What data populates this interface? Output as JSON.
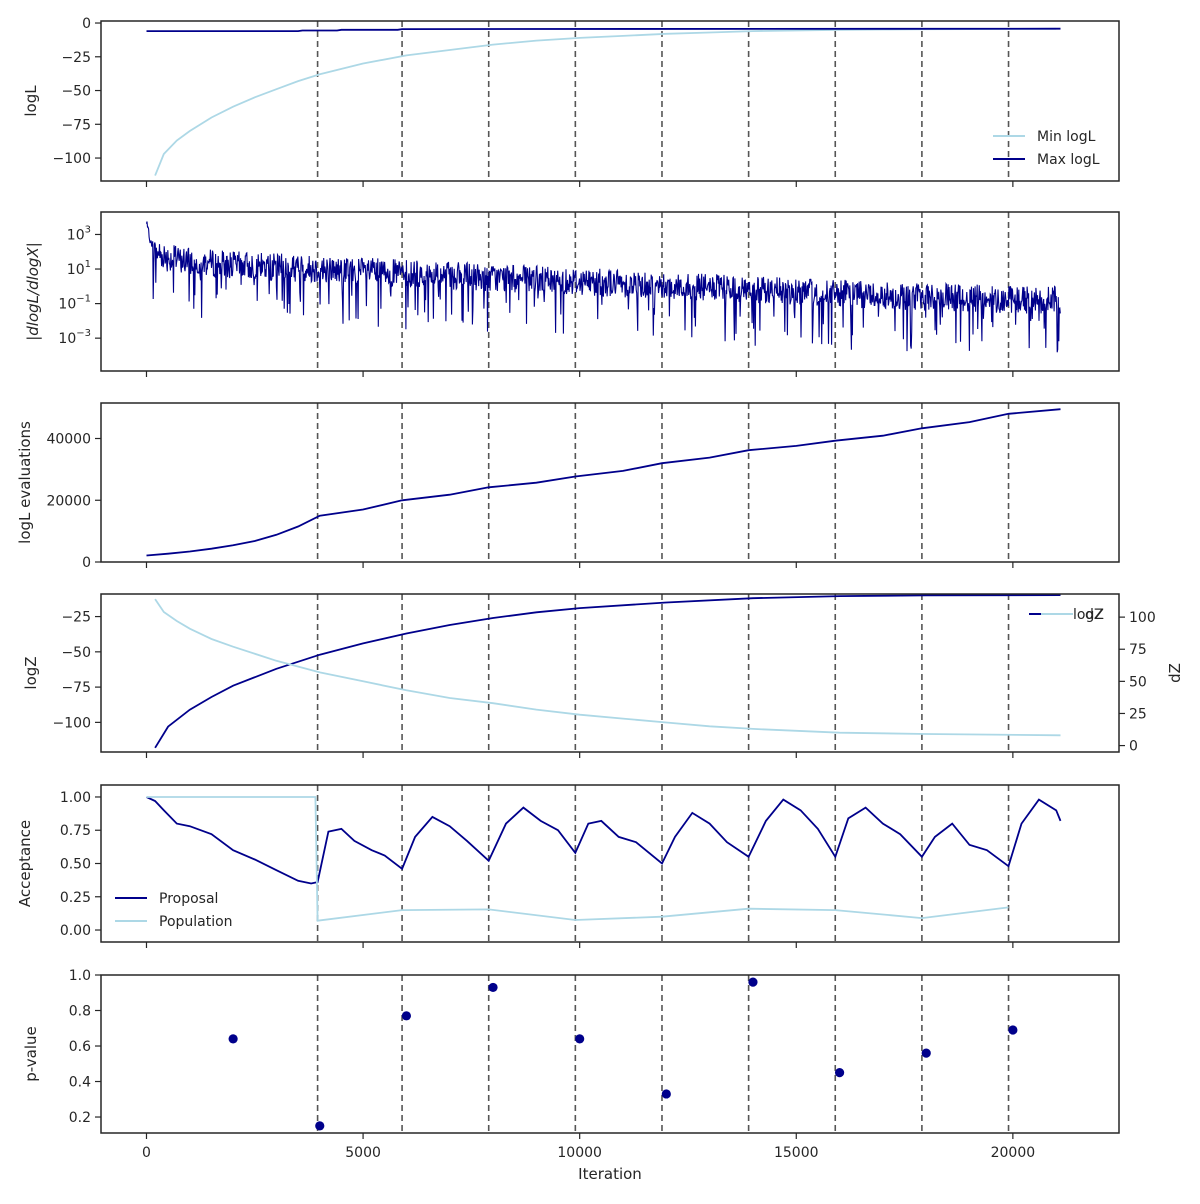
{
  "colors": {
    "navy": "#00008b",
    "light": "#add8e6",
    "frame": "#262626",
    "vline": "#555555"
  },
  "xaxis": {
    "label": "Iteration",
    "range": [
      -1050,
      22450
    ],
    "ticks": [
      0,
      5000,
      10000,
      15000,
      20000
    ]
  },
  "vlines": [
    3950,
    5900,
    7900,
    9900,
    11900,
    13900,
    15900,
    17900,
    19900
  ],
  "chart_data": [
    {
      "id": "logl",
      "type": "line",
      "ylabel": "logL",
      "ylim": [
        -117,
        1.5
      ],
      "yticks": [
        {
          "v": 0,
          "label": "0"
        },
        {
          "v": -25,
          "label": "−25"
        },
        {
          "v": -50,
          "label": "−50"
        },
        {
          "v": -75,
          "label": "−75"
        },
        {
          "v": -100,
          "label": "−100"
        }
      ],
      "legend": {
        "placement": "lower-right",
        "entries": [
          "Min logL",
          "Max logL"
        ]
      },
      "series": [
        {
          "name": "Min logL",
          "color": "light",
          "x": [
            200,
            400,
            700,
            1000,
            1500,
            2000,
            2500,
            3000,
            3500,
            4000,
            5000,
            6000,
            7000,
            8000,
            9000,
            10000,
            11000,
            12000,
            13000,
            14000,
            15000,
            16000,
            17000,
            18000,
            19000,
            20000,
            21000
          ],
          "y": [
            -113,
            -97,
            -87,
            -80,
            -70,
            -62,
            -55,
            -49,
            -43,
            -38,
            -30,
            -24,
            -20,
            -16,
            -13,
            -11,
            -9.5,
            -8,
            -7,
            -6,
            -5.5,
            -5,
            -4.8,
            -4.6,
            -4.5,
            -4.4,
            -4.3
          ]
        },
        {
          "name": "Max logL",
          "color": "navy",
          "x": [
            0,
            3500,
            3600,
            4400,
            4500,
            5800,
            5900,
            21100
          ],
          "y": [
            -6,
            -6,
            -5.5,
            -5.5,
            -5,
            -5,
            -4.5,
            -4.2
          ]
        }
      ]
    },
    {
      "id": "dlogl",
      "type": "line",
      "ylabel": "|dlogL/dlogX|",
      "yscale": "log",
      "ylim": [
        -4.9,
        4.3
      ],
      "yticks": [
        {
          "v": 3,
          "base": "10",
          "exp": "3"
        },
        {
          "v": 1,
          "base": "10",
          "exp": "1"
        },
        {
          "v": -1,
          "base": "10",
          "exp": "−1"
        },
        {
          "v": -3,
          "base": "10",
          "exp": "−3"
        }
      ],
      "series": [
        {
          "name": "",
          "color": "navy",
          "x": [
            0,
            100,
            500,
            1000,
            2000,
            4000,
            6000,
            8000,
            10000,
            12000,
            14000,
            16000,
            18000,
            20000,
            21100
          ],
          "y_log10_center": [
            3.5,
            2.3,
            1.8,
            1.6,
            1.4,
            1.15,
            0.9,
            0.65,
            0.45,
            0.2,
            -0.05,
            -0.25,
            -0.45,
            -0.6,
            -0.65
          ]
        }
      ]
    },
    {
      "id": "evals",
      "type": "line",
      "ylabel": "logL evaluations",
      "ylim": [
        0,
        51500
      ],
      "yticks": [
        {
          "v": 0,
          "label": "0"
        },
        {
          "v": 20000,
          "label": "20000"
        },
        {
          "v": 40000,
          "label": "40000"
        }
      ],
      "series": [
        {
          "name": "",
          "color": "navy",
          "x": [
            0,
            500,
            1000,
            1500,
            2000,
            2500,
            3000,
            3500,
            4000,
            5000,
            5900,
            7000,
            7900,
            9000,
            9900,
            11000,
            11900,
            13000,
            13900,
            15000,
            15900,
            17000,
            17900,
            19000,
            19900,
            21100
          ],
          "y": [
            2100,
            2700,
            3400,
            4300,
            5400,
            6800,
            8800,
            11500,
            15000,
            17000,
            20000,
            21800,
            24200,
            25700,
            27700,
            29500,
            32000,
            33800,
            36200,
            37600,
            39300,
            40900,
            43300,
            45300,
            48000,
            49500
          ]
        }
      ]
    },
    {
      "id": "logz",
      "type": "line",
      "ylabel": "logZ",
      "ylabel2": "dZ",
      "ylim": [
        -121,
        -9
      ],
      "y2lim": [
        -5,
        118
      ],
      "yticks": [
        {
          "v": -25,
          "label": "−25"
        },
        {
          "v": -50,
          "label": "−50"
        },
        {
          "v": -75,
          "label": "−75"
        },
        {
          "v": -100,
          "label": "−100"
        }
      ],
      "y2ticks": [
        {
          "v": 0,
          "label": "0"
        },
        {
          "v": 25,
          "label": "25"
        },
        {
          "v": 50,
          "label": "50"
        },
        {
          "v": 75,
          "label": "75"
        },
        {
          "v": 100,
          "label": "100"
        }
      ],
      "legend": {
        "placement": "top-right",
        "entries": [
          "logZ",
          "dZ"
        ]
      },
      "series": [
        {
          "name": "logZ",
          "axis": "left",
          "color": "navy",
          "x": [
            200,
            500,
            1000,
            1500,
            2000,
            3000,
            4000,
            5000,
            6000,
            7000,
            8000,
            9000,
            10000,
            12000,
            14000,
            16000,
            18000,
            21100
          ],
          "y": [
            -118,
            -103,
            -91,
            -82,
            -74,
            -62,
            -52,
            -44,
            -37,
            -31,
            -26,
            -22,
            -19,
            -15,
            -12,
            -10.5,
            -10,
            -9.8
          ]
        },
        {
          "name": "dZ",
          "axis": "right",
          "color": "light",
          "x": [
            200,
            400,
            700,
            1000,
            1500,
            2000,
            3000,
            4000,
            5000,
            6000,
            7000,
            8000,
            9000,
            10000,
            11000,
            12000,
            13000,
            14000,
            16000,
            18000,
            21100
          ],
          "y": [
            114,
            104,
            97,
            91,
            83,
            77,
            66,
            57,
            50,
            43,
            37,
            33,
            28,
            24,
            21,
            18,
            15,
            13,
            10,
            9,
            8
          ]
        }
      ]
    },
    {
      "id": "acceptance",
      "type": "line",
      "ylabel": "Acceptance",
      "ylim": [
        -0.09,
        1.09
      ],
      "yticks": [
        {
          "v": 0,
          "label": "0.00"
        },
        {
          "v": 0.25,
          "label": "0.25"
        },
        {
          "v": 0.5,
          "label": "0.50"
        },
        {
          "v": 0.75,
          "label": "0.75"
        },
        {
          "v": 1.0,
          "label": "1.00"
        }
      ],
      "legend": {
        "placement": "lower-left",
        "entries": [
          "Proposal",
          "Population"
        ]
      },
      "series": [
        {
          "name": "Proposal",
          "color": "navy",
          "x": [
            0,
            200,
            400,
            700,
            1000,
            1500,
            2000,
            2500,
            3000,
            3500,
            3800,
            3950,
            4200,
            4500,
            4800,
            5200,
            5500,
            5900,
            6200,
            6600,
            7000,
            7400,
            7900,
            8300,
            8700,
            9100,
            9500,
            9900,
            10200,
            10500,
            10900,
            11300,
            11900,
            12200,
            12600,
            13000,
            13400,
            13900,
            14300,
            14700,
            15100,
            15500,
            15900,
            16200,
            16600,
            17000,
            17400,
            17900,
            18200,
            18600,
            19000,
            19400,
            19900,
            20200,
            20600,
            21000,
            21100
          ],
          "y": [
            1.0,
            0.97,
            0.9,
            0.8,
            0.78,
            0.72,
            0.6,
            0.53,
            0.45,
            0.37,
            0.35,
            0.36,
            0.74,
            0.76,
            0.67,
            0.6,
            0.56,
            0.46,
            0.7,
            0.85,
            0.78,
            0.67,
            0.52,
            0.8,
            0.92,
            0.82,
            0.75,
            0.58,
            0.8,
            0.82,
            0.7,
            0.66,
            0.5,
            0.7,
            0.88,
            0.8,
            0.66,
            0.55,
            0.82,
            0.98,
            0.9,
            0.76,
            0.55,
            0.84,
            0.92,
            0.8,
            0.72,
            0.55,
            0.7,
            0.8,
            0.64,
            0.6,
            0.48,
            0.8,
            0.98,
            0.9,
            0.82
          ]
        },
        {
          "name": "Population",
          "color": "light",
          "x": [
            0,
            3900,
            3950,
            5900,
            7900,
            9900,
            11900,
            13900,
            15900,
            17900,
            19900
          ],
          "y": [
            1.0,
            1.0,
            0.07,
            0.15,
            0.155,
            0.075,
            0.1,
            0.16,
            0.15,
            0.09,
            0.17
          ]
        }
      ]
    },
    {
      "id": "pvalue",
      "type": "scatter",
      "ylabel": "p-value",
      "xlabel": "Iteration",
      "ylim": [
        0.11,
        1.0
      ],
      "yticks": [
        {
          "v": 0.2,
          "label": "0.2"
        },
        {
          "v": 0.4,
          "label": "0.4"
        },
        {
          "v": 0.6,
          "label": "0.6"
        },
        {
          "v": 0.8,
          "label": "0.8"
        },
        {
          "v": 1.0,
          "label": "1.0"
        }
      ],
      "series": [
        {
          "name": "",
          "color": "navy",
          "x": [
            2000,
            4000,
            6000,
            8000,
            10000,
            12000,
            14000,
            16000,
            18000,
            20000
          ],
          "y": [
            0.64,
            0.15,
            0.77,
            0.93,
            0.64,
            0.33,
            0.96,
            0.45,
            0.56,
            0.69
          ]
        }
      ]
    }
  ]
}
